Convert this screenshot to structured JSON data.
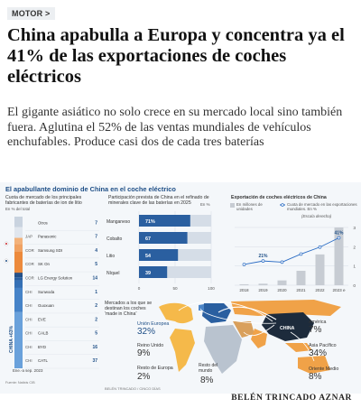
{
  "section_tag": "MOTOR >",
  "headline": "China apabulla a Europa y concentra ya el 41% de las exportaciones de coches eléctricos",
  "lead": "El gigante asiático no solo crece en su mercado local sino también fuera. Aglutina el 52% de las ventas mundiales de vehículos enchufables. Produce casi dos de cada tres baterías",
  "infographic": {
    "title": "El apabullante dominio de China en el coche eléctrico",
    "battery_panel": {
      "title": "Cuota de mercado de los principales fabricantes de baterías de ion de litio",
      "unit": "En % del total",
      "rows": [
        {
          "country": "",
          "name": "Otros",
          "value": "7",
          "color": "#c9d3df"
        },
        {
          "country": "JAP",
          "name": "Panasonic",
          "value": "7",
          "color": "#e0e6ee"
        },
        {
          "country": "COR",
          "name": "Samsung SDI",
          "value": "4",
          "color": "#f3b27a"
        },
        {
          "country": "COR",
          "name": "SK On",
          "value": "5",
          "color": "#f0a262"
        },
        {
          "country": "COR",
          "name": "LG Energy Solution",
          "value": "14",
          "color": "#ec8a3c"
        },
        {
          "country": "CHI",
          "name": "Sunwoda",
          "value": "1",
          "color": "#1a3f70"
        },
        {
          "country": "CHI",
          "name": "Guoxuan",
          "value": "2",
          "color": "#22508a"
        },
        {
          "country": "CHI",
          "name": "EVE",
          "value": "2",
          "color": "#2a5fa0"
        },
        {
          "country": "CHI",
          "name": "CALB",
          "value": "5",
          "color": "#3570b5"
        },
        {
          "country": "CHI",
          "name": "BYD",
          "value": "16",
          "color": "#4683c8"
        },
        {
          "country": "CHI",
          "name": "CATL",
          "value": "37",
          "color": "#6aa1db"
        }
      ],
      "china_label": "CHINA +63%",
      "date": "Ene.-a sep. 2023",
      "source": "Fuente: Natixis CIB"
    },
    "refining_panel": {
      "title": "Participación prevista de China en el refinado de minerales clave de las baterías en 2025",
      "unit": "En %",
      "axis_ticks": [
        "0",
        "50",
        "100"
      ]
    },
    "export_panel": {
      "title": "Exportación de coches eléctricos de China",
      "legend_bars": "En millones de unidades",
      "legend_line": "Cuota de mercado en las exportaciones mundiales. En %",
      "scale_note": "(Escala derecha)",
      "y_ticks": [
        "3",
        "2",
        "1",
        "0"
      ],
      "line_labels": [
        "21%",
        "41%"
      ]
    },
    "destinations_panel": {
      "title": "Mercados a los que se destinan los coches 'made in China'",
      "items": [
        {
          "name": "Unión Europea",
          "value": "32%"
        },
        {
          "name": "Reino Unido",
          "value": "9%"
        },
        {
          "name": "Resto de Europa",
          "value": "2%"
        },
        {
          "name": "Resto del mundo",
          "value": "8%"
        },
        {
          "name": "América",
          "value": "7%"
        },
        {
          "name": "Asia Pacífico",
          "value": "34%"
        },
        {
          "name": "Oriente Medio",
          "value": "8%"
        }
      ],
      "china_map_label": "CHINA"
    },
    "credit": "BELÉN TRINCADO / CINCO DÍAS"
  },
  "byline": "BELÉN TRINCADO AZNAR",
  "chart_data": [
    {
      "type": "bar",
      "title": "Participación prevista de China en el refinado de minerales clave de las baterías en 2025",
      "xlabel": "",
      "ylabel": "En %",
      "categories": [
        "Manganeso",
        "Cobalto",
        "Litio",
        "Níquel"
      ],
      "values": [
        71,
        67,
        54,
        39
      ],
      "value_labels": [
        "71%",
        "67",
        "54",
        "39"
      ],
      "xlim": [
        0,
        100
      ],
      "grid": true,
      "colors": {
        "fill": "#2a5fa0",
        "track": "#d5dde7"
      }
    },
    {
      "type": "bar",
      "title": "Exportación de coches eléctricos de China",
      "categories": [
        "2018",
        "2019",
        "2020",
        "2021",
        "2022",
        "2023 e"
      ],
      "values": [
        0.05,
        0.08,
        0.25,
        0.75,
        1.6,
        3.0
      ],
      "ylim": [
        0,
        3
      ],
      "series": [
        {
          "name": "En millones de unidades",
          "values": [
            0.05,
            0.08,
            0.25,
            0.75,
            1.6,
            3.0
          ]
        },
        {
          "name": "Cuota de mercado en las exportaciones mundiales. En %",
          "values": [
            18,
            21,
            20,
            27,
            33,
            41
          ]
        }
      ],
      "y2lim": [
        0,
        50
      ],
      "colors": {
        "bars": "#c7ccd3",
        "line": "#2a6cc4"
      }
    }
  ]
}
